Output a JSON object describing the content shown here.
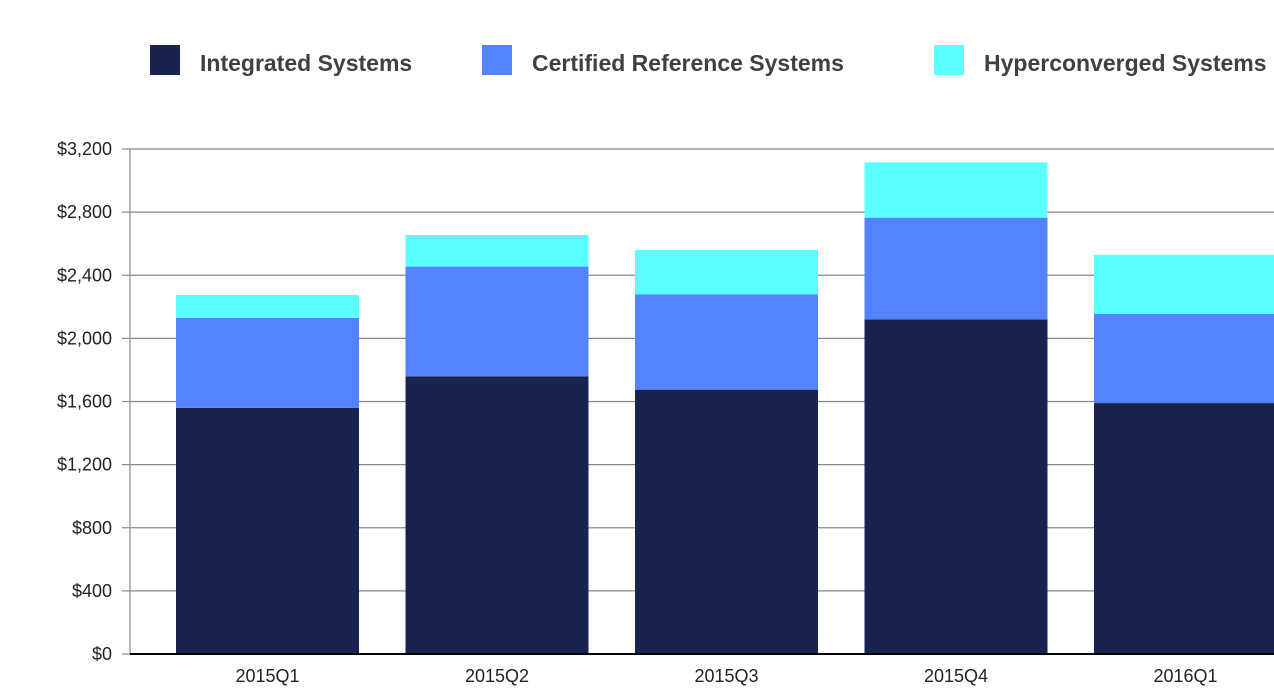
{
  "colors": {
    "integrated": "#18244f",
    "certified": "#5383ff",
    "hyperconverged": "#5cffff",
    "grid": "#888888",
    "axis": "#000000"
  },
  "chart_data": {
    "type": "bar",
    "stacked": true,
    "title": "",
    "xlabel": "",
    "ylabel": "",
    "categories": [
      "2015Q1",
      "2015Q2",
      "2015Q3",
      "2015Q4",
      "2016Q1"
    ],
    "series": [
      {
        "name": "Integrated Systems",
        "color_key": "integrated",
        "values": [
          1560,
          1760,
          1675,
          2120,
          1590
        ]
      },
      {
        "name": "Certified Reference Systems",
        "color_key": "certified",
        "values": [
          570,
          695,
          605,
          645,
          565
        ]
      },
      {
        "name": "Hyperconverged Systems",
        "color_key": "hyperconverged",
        "values": [
          145,
          200,
          280,
          350,
          375
        ]
      }
    ],
    "ylim": [
      0,
      3200
    ],
    "yticks": [
      0,
      400,
      800,
      1200,
      1600,
      2000,
      2400,
      2800,
      3200
    ],
    "ytick_labels": [
      "$0",
      "$400",
      "$800",
      "$1,200",
      "$1,600",
      "$2,000",
      "$2,400",
      "$2,800",
      "$3,200"
    ],
    "grid": true,
    "legend_position": "top"
  }
}
